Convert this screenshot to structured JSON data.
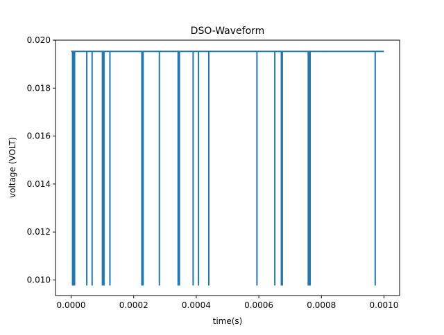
{
  "chart_data": {
    "type": "line",
    "title": "DSO-Waveform",
    "xlabel": "time(s)",
    "ylabel": "voltage (VOLT)",
    "xlim": [
      -5e-05,
      0.00105
    ],
    "ylim": [
      0.00935,
      0.02
    ],
    "x_ticks": [
      {
        "value": 0.0,
        "label": "0.0000"
      },
      {
        "value": 0.0002,
        "label": "0.0002"
      },
      {
        "value": 0.0004,
        "label": "0.0004"
      },
      {
        "value": 0.0006,
        "label": "0.0006"
      },
      {
        "value": 0.0008,
        "label": "0.0008"
      },
      {
        "value": 0.001,
        "label": "0.0010"
      }
    ],
    "y_ticks": [
      {
        "value": 0.01,
        "label": "0.010"
      },
      {
        "value": 0.012,
        "label": "0.012"
      },
      {
        "value": 0.014,
        "label": "0.014"
      },
      {
        "value": 0.016,
        "label": "0.016"
      },
      {
        "value": 0.018,
        "label": "0.018"
      },
      {
        "value": 0.02,
        "label": "0.020"
      }
    ],
    "grid": false,
    "legend": "none",
    "series": [
      {
        "color": "#1f77b4",
        "baseline": 0.01953,
        "dip_level": 0.00977,
        "x_start": 0.0,
        "x_end": 0.001,
        "dip_times": [
          4.5e-06,
          7e-06,
          9e-06,
          1.1e-05,
          5e-05,
          6.7e-05,
          0.0001,
          0.000102,
          0.000105,
          0.000124,
          0.000226,
          0.000228,
          0.00023,
          0.000282,
          0.000342,
          0.000344,
          0.000346,
          0.00039,
          0.000407,
          0.00044,
          0.000594,
          0.000651,
          0.000672,
          0.000675,
          0.000758,
          0.00076,
          0.000762,
          0.000764,
          0.000972
        ]
      }
    ]
  }
}
